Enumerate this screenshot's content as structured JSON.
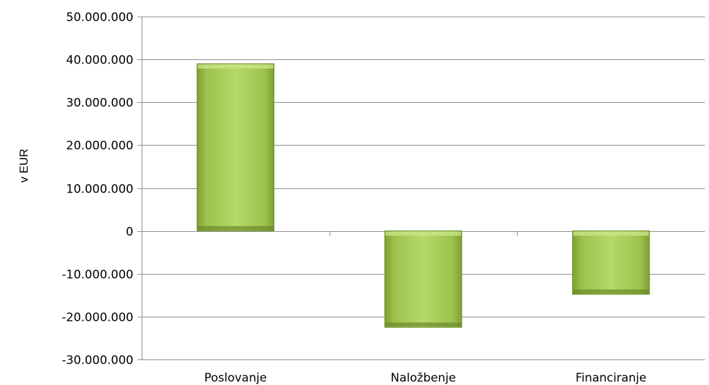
{
  "chart_data": {
    "type": "bar",
    "title": "",
    "xlabel": "",
    "ylabel": "v EUR",
    "categories": [
      "Poslovanje",
      "Naložbenje",
      "Financiranje"
    ],
    "series": [
      {
        "values": [
          39000000,
          -22500000,
          -14800000
        ]
      }
    ],
    "ylim": [
      -30000000,
      50000000
    ],
    "yticks": [
      50000000,
      40000000,
      30000000,
      20000000,
      10000000,
      0,
      -10000000,
      -20000000,
      -30000000
    ],
    "ytick_labels": [
      "50.000.000",
      "40.000.000",
      "30.000.000",
      "20.000.000",
      "10.000.000",
      "0",
      "-10.000.000",
      "-20.000.000",
      "-30.000.000"
    ],
    "grid": true,
    "legend": "none",
    "colors": {
      "bar_light": "#b5d96a",
      "bar_mid": "#9bc24a",
      "bar_dark": "#6f8f2c",
      "grid": "#8c8c8c",
      "axis": "#8c8c8c"
    }
  }
}
